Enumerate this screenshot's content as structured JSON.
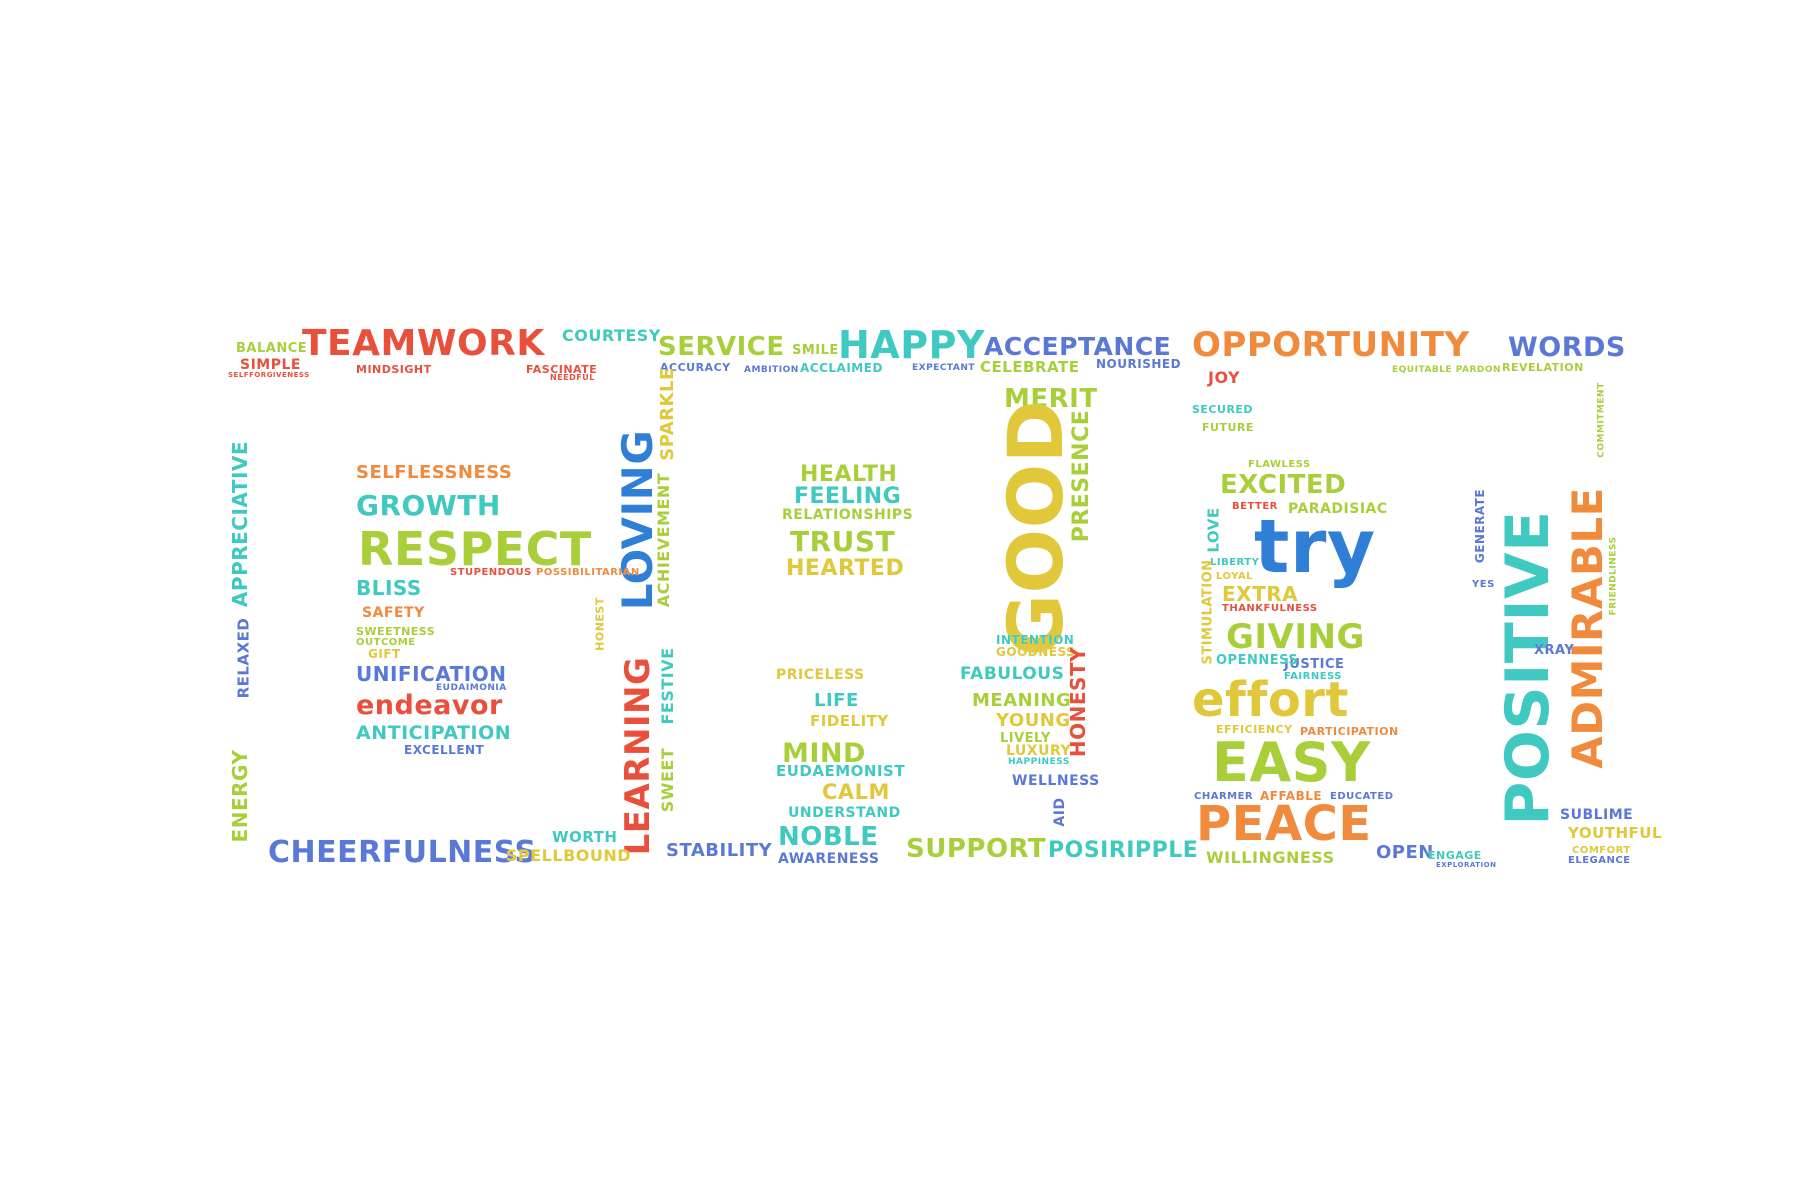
{
  "wordcloud": {
    "words": [
      {
        "text": "TEAMWORK",
        "color": "#e8503c"
      },
      {
        "text": "COURTESY",
        "color": "#3fc9c0"
      },
      {
        "text": "BALANCE",
        "color": "#a8cf3a"
      },
      {
        "text": "SIMPLE",
        "color": "#e8503c"
      },
      {
        "text": "MINDSIGHT",
        "color": "#e8503c"
      },
      {
        "text": "FASCINATE",
        "color": "#e8503c"
      },
      {
        "text": "NEEDFUL",
        "color": "#e8503c"
      },
      {
        "text": "SELFFORGIVENESS",
        "color": "#e8503c"
      },
      {
        "text": "SERVICE",
        "color": "#a8cf3a"
      },
      {
        "text": "SMILE",
        "color": "#a8cf3a"
      },
      {
        "text": "HAPPY",
        "color": "#3fc9c0"
      },
      {
        "text": "ACCEPTANCE",
        "color": "#5a78d6"
      },
      {
        "text": "OPPORTUNITY",
        "color": "#f08a3c"
      },
      {
        "text": "WORDS",
        "color": "#5a78d6"
      },
      {
        "text": "ACCURACY",
        "color": "#5a78d6"
      },
      {
        "text": "AMBITION",
        "color": "#5a78d6"
      },
      {
        "text": "ACCLAIMED",
        "color": "#3fc9c0"
      },
      {
        "text": "EXPECTANT",
        "color": "#5a78d6"
      },
      {
        "text": "CELEBRATE",
        "color": "#a8cf3a"
      },
      {
        "text": "NOURISHED",
        "color": "#5a78d6"
      },
      {
        "text": "REVELATION",
        "color": "#a8cf3a"
      },
      {
        "text": "EQUITABLE PARDON",
        "color": "#a8cf3a"
      },
      {
        "text": "JOY",
        "color": "#e8503c"
      },
      {
        "text": "SECURED",
        "color": "#3fc9c0"
      },
      {
        "text": "FUTURE",
        "color": "#a8cf3a"
      },
      {
        "text": "MERIT",
        "color": "#a8cf3a"
      },
      {
        "text": "LOVING",
        "color": "#2f7fd6"
      },
      {
        "text": "LEARNING",
        "color": "#e8503c"
      },
      {
        "text": "SPARKLE",
        "color": "#e0c83a"
      },
      {
        "text": "ACHIEVEMENT",
        "color": "#a8cf3a"
      },
      {
        "text": "FESTIVE",
        "color": "#3fc9c0"
      },
      {
        "text": "SWEET",
        "color": "#a8cf3a"
      },
      {
        "text": "HONEST",
        "color": "#e0c83a"
      },
      {
        "text": "APPRECIATIVE",
        "color": "#3fc9c0"
      },
      {
        "text": "RELAXED",
        "color": "#5a78d6"
      },
      {
        "text": "ENERGY",
        "color": "#a8cf3a"
      },
      {
        "text": "SELFLESSNESS",
        "color": "#f08a3c"
      },
      {
        "text": "GROWTH",
        "color": "#3fc9c0"
      },
      {
        "text": "RESPECT",
        "color": "#a8cf3a"
      },
      {
        "text": "STUPENDOUS",
        "color": "#e8503c"
      },
      {
        "text": "POSSIBILITARIAN",
        "color": "#f08a3c"
      },
      {
        "text": "BLISS",
        "color": "#3fc9c0"
      },
      {
        "text": "SAFETY",
        "color": "#f08a3c"
      },
      {
        "text": "SWEETNESS",
        "color": "#a8cf3a"
      },
      {
        "text": "OUTCOME",
        "color": "#a8cf3a"
      },
      {
        "text": "GIFT",
        "color": "#e0c83a"
      },
      {
        "text": "UNIFICATION",
        "color": "#5a78d6"
      },
      {
        "text": "EUDAIMONIA",
        "color": "#5a78d6"
      },
      {
        "text": "endeavor",
        "color": "#e8503c"
      },
      {
        "text": "ANTICIPATION",
        "color": "#3fc9c0"
      },
      {
        "text": "EXCELLENT",
        "color": "#5a78d6"
      },
      {
        "text": "CHEERFULNESS",
        "color": "#5a78d6"
      },
      {
        "text": "WORTH",
        "color": "#3fc9c0"
      },
      {
        "text": "SPELLBOUND",
        "color": "#e0c83a"
      },
      {
        "text": "HEALTH",
        "color": "#a8cf3a"
      },
      {
        "text": "FEELING",
        "color": "#3fc9c0"
      },
      {
        "text": "RELATIONSHIPS",
        "color": "#a8cf3a"
      },
      {
        "text": "TRUST",
        "color": "#a8cf3a"
      },
      {
        "text": "HEARTED",
        "color": "#e0c83a"
      },
      {
        "text": "PRICELESS",
        "color": "#e0c83a"
      },
      {
        "text": "LIFE",
        "color": "#3fc9c0"
      },
      {
        "text": "FIDELITY",
        "color": "#e0c83a"
      },
      {
        "text": "MIND",
        "color": "#a8cf3a"
      },
      {
        "text": "EUDAEMONIST",
        "color": "#3fc9c0"
      },
      {
        "text": "CALM",
        "color": "#e0c83a"
      },
      {
        "text": "UNDERSTAND",
        "color": "#3fc9c0"
      },
      {
        "text": "NOBLE",
        "color": "#3fc9c0"
      },
      {
        "text": "AWARENESS",
        "color": "#5a78d6"
      },
      {
        "text": "STABILITY",
        "color": "#5a78d6"
      },
      {
        "text": "GOOD",
        "color": "#e0c83a"
      },
      {
        "text": "PRESENCE",
        "color": "#a8cf3a"
      },
      {
        "text": "INTENTION",
        "color": "#3fc9c0"
      },
      {
        "text": "GOODNESS",
        "color": "#e0c83a"
      },
      {
        "text": "FABULOUS",
        "color": "#3fc9c0"
      },
      {
        "text": "MEANING",
        "color": "#a8cf3a"
      },
      {
        "text": "YOUNG",
        "color": "#e0c83a"
      },
      {
        "text": "LIVELY",
        "color": "#a8cf3a"
      },
      {
        "text": "LUXURY",
        "color": "#e0c83a"
      },
      {
        "text": "HAPPINESS",
        "color": "#3fc9c0"
      },
      {
        "text": "HONESTY",
        "color": "#e8503c"
      },
      {
        "text": "WELLNESS",
        "color": "#5a78d6"
      },
      {
        "text": "AID",
        "color": "#5a78d6"
      },
      {
        "text": "SUPPORT",
        "color": "#a8cf3a"
      },
      {
        "text": "POSIRIPPLE",
        "color": "#3fc9c0"
      },
      {
        "text": "FLAWLESS",
        "color": "#a8cf3a"
      },
      {
        "text": "EXCITED",
        "color": "#a8cf3a"
      },
      {
        "text": "BETTER",
        "color": "#e8503c"
      },
      {
        "text": "PARADISIAC",
        "color": "#a8cf3a"
      },
      {
        "text": "try",
        "color": "#2f7fd6"
      },
      {
        "text": "LOVE",
        "color": "#3fc9c0"
      },
      {
        "text": "LIBERTY",
        "color": "#3fc9c0"
      },
      {
        "text": "LOYAL",
        "color": "#e0c83a"
      },
      {
        "text": "EXTRA",
        "color": "#e0c83a"
      },
      {
        "text": "THANKFULNESS",
        "color": "#e8503c"
      },
      {
        "text": "STIMULATION",
        "color": "#e0c83a"
      },
      {
        "text": "GIVING",
        "color": "#a8cf3a"
      },
      {
        "text": "JUSTICE",
        "color": "#5a78d6"
      },
      {
        "text": "FAIRNESS",
        "color": "#3fc9c0"
      },
      {
        "text": "OPENNESS",
        "color": "#3fc9c0"
      },
      {
        "text": "effort",
        "color": "#e0c83a"
      },
      {
        "text": "EFFICIENCY",
        "color": "#e0c83a"
      },
      {
        "text": "PARTICIPATION",
        "color": "#f08a3c"
      },
      {
        "text": "EASY",
        "color": "#a8cf3a"
      },
      {
        "text": "CHARMER",
        "color": "#5a78d6"
      },
      {
        "text": "AFFABLE",
        "color": "#f08a3c"
      },
      {
        "text": "EDUCATED",
        "color": "#5a78d6"
      },
      {
        "text": "PEACE",
        "color": "#f08a3c"
      },
      {
        "text": "WILLINGNESS",
        "color": "#a8cf3a"
      },
      {
        "text": "OPEN",
        "color": "#5a78d6"
      },
      {
        "text": "ENGAGE",
        "color": "#3fc9c0"
      },
      {
        "text": "EXPLORATION",
        "color": "#5a78d6"
      },
      {
        "text": "GENERATE",
        "color": "#5a78d6"
      },
      {
        "text": "YES",
        "color": "#5a78d6"
      },
      {
        "text": "POSITIVE",
        "color": "#3fc9c0"
      },
      {
        "text": "ADMIRABLE",
        "color": "#f08a3c"
      },
      {
        "text": "COMMITMENT",
        "color": "#a8cf3a"
      },
      {
        "text": "FRIENDLINESS",
        "color": "#a8cf3a"
      },
      {
        "text": "XRAY",
        "color": "#5a78d6"
      },
      {
        "text": "SUBLIME",
        "color": "#5a78d6"
      },
      {
        "text": "YOUTHFUL",
        "color": "#e0c83a"
      },
      {
        "text": "COMFORT",
        "color": "#e0c83a"
      },
      {
        "text": "ELEGANCE",
        "color": "#5a78d6"
      }
    ]
  }
}
